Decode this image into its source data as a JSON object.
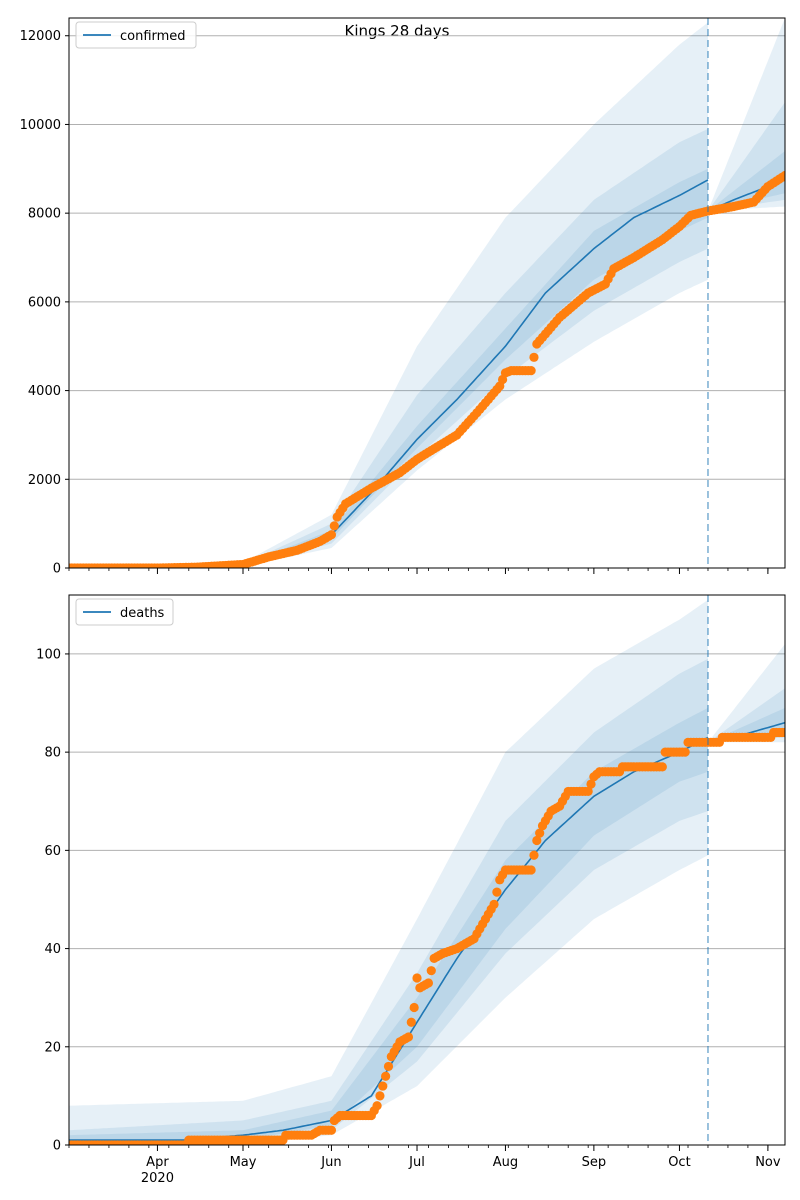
{
  "figure_title": "Kings 28 days",
  "colors": {
    "model": "#1f77b4",
    "observed": "#ff7f0e",
    "band": "#1f77b4",
    "grid": "#b0b0b0",
    "cutoff": "#1f77b4"
  },
  "x_axis": {
    "start": "2020-03-01",
    "end": "2020-11-07",
    "cutoff_date": "2020-10-11",
    "month_ticks": [
      {
        "date": "2020-04-01",
        "label": "Apr"
      },
      {
        "date": "2020-05-01",
        "label": "May"
      },
      {
        "date": "2020-06-01",
        "label": "Jun"
      },
      {
        "date": "2020-07-01",
        "label": "Jul"
      },
      {
        "date": "2020-08-01",
        "label": "Aug"
      },
      {
        "date": "2020-09-01",
        "label": "Sep"
      },
      {
        "date": "2020-10-01",
        "label": "Oct"
      },
      {
        "date": "2020-11-01",
        "label": "Nov"
      }
    ],
    "year_label": "2020"
  },
  "chart_data": [
    {
      "type": "line",
      "legend": "confirmed",
      "legend_position": "top-left",
      "grid": "horizontal",
      "ylim": [
        0,
        12400
      ],
      "yticks": [
        0,
        2000,
        4000,
        6000,
        8000,
        10000,
        12000
      ],
      "model_line": [
        [
          "2020-03-01",
          0
        ],
        [
          "2020-04-01",
          0
        ],
        [
          "2020-05-01",
          60
        ],
        [
          "2020-05-15",
          250
        ],
        [
          "2020-06-01",
          750
        ],
        [
          "2020-06-15",
          1700
        ],
        [
          "2020-07-01",
          2900
        ],
        [
          "2020-07-15",
          3800
        ],
        [
          "2020-08-01",
          5000
        ],
        [
          "2020-08-15",
          6200
        ],
        [
          "2020-09-01",
          7200
        ],
        [
          "2020-09-15",
          7900
        ],
        [
          "2020-10-01",
          8400
        ],
        [
          "2020-10-11",
          8750
        ]
      ],
      "projection_line": [
        [
          "2020-10-11",
          8050
        ],
        [
          "2020-10-20",
          8300
        ],
        [
          "2020-11-01",
          8600
        ],
        [
          "2020-11-07",
          8750
        ]
      ],
      "bands": [
        {
          "lower": [
            [
              "2020-03-01",
              0
            ],
            [
              "2020-05-01",
              30
            ],
            [
              "2020-06-01",
              450
            ],
            [
              "2020-07-01",
              2200
            ],
            [
              "2020-08-01",
              3800
            ],
            [
              "2020-09-01",
              5100
            ],
            [
              "2020-10-01",
              6200
            ],
            [
              "2020-10-11",
              6500
            ]
          ],
          "upper": [
            [
              "2020-03-01",
              0
            ],
            [
              "2020-05-01",
              120
            ],
            [
              "2020-06-01",
              1200
            ],
            [
              "2020-07-01",
              5000
            ],
            [
              "2020-08-01",
              7900
            ],
            [
              "2020-09-01",
              10000
            ],
            [
              "2020-10-01",
              11800
            ],
            [
              "2020-10-11",
              12300
            ]
          ]
        },
        {
          "lower": [
            [
              "2020-03-01",
              0
            ],
            [
              "2020-05-01",
              40
            ],
            [
              "2020-06-01",
              550
            ],
            [
              "2020-07-01",
              2500
            ],
            [
              "2020-08-01",
              4300
            ],
            [
              "2020-09-01",
              5800
            ],
            [
              "2020-10-01",
              6900
            ],
            [
              "2020-10-11",
              7200
            ]
          ],
          "upper": [
            [
              "2020-03-01",
              0
            ],
            [
              "2020-05-01",
              90
            ],
            [
              "2020-06-01",
              1000
            ],
            [
              "2020-07-01",
              3900
            ],
            [
              "2020-08-01",
              6200
            ],
            [
              "2020-09-01",
              8300
            ],
            [
              "2020-10-01",
              9600
            ],
            [
              "2020-10-11",
              9900
            ]
          ]
        },
        {
          "lower": [
            [
              "2020-03-01",
              0
            ],
            [
              "2020-05-01",
              50
            ],
            [
              "2020-06-01",
              650
            ],
            [
              "2020-07-01",
              2700
            ],
            [
              "2020-08-01",
              4700
            ],
            [
              "2020-09-01",
              6500
            ],
            [
              "2020-10-01",
              7600
            ],
            [
              "2020-10-11",
              7900
            ]
          ],
          "upper": [
            [
              "2020-03-01",
              0
            ],
            [
              "2020-05-01",
              75
            ],
            [
              "2020-06-01",
              850
            ],
            [
              "2020-07-01",
              3200
            ],
            [
              "2020-08-01",
              5400
            ],
            [
              "2020-09-01",
              7600
            ],
            [
              "2020-10-01",
              8700
            ],
            [
              "2020-10-11",
              9000
            ]
          ]
        },
        {
          "lower": [
            [
              "2020-10-11",
              8050
            ],
            [
              "2020-11-07",
              8150
            ]
          ],
          "upper": [
            [
              "2020-10-11",
              8050
            ],
            [
              "2020-11-07",
              12400
            ]
          ]
        },
        {
          "lower": [
            [
              "2020-10-11",
              8050
            ],
            [
              "2020-11-07",
              8300
            ]
          ],
          "upper": [
            [
              "2020-10-11",
              8050
            ],
            [
              "2020-11-07",
              10500
            ]
          ]
        },
        {
          "lower": [
            [
              "2020-10-11",
              8050
            ],
            [
              "2020-11-07",
              8450
            ]
          ],
          "upper": [
            [
              "2020-10-11",
              8050
            ],
            [
              "2020-11-07",
              9400
            ]
          ]
        }
      ],
      "observed": [
        [
          "2020-03-01",
          0
        ],
        [
          "2020-04-01",
          0
        ],
        [
          "2020-04-15",
          20
        ],
        [
          "2020-05-01",
          80
        ],
        [
          "2020-05-10",
          250
        ],
        [
          "2020-05-20",
          400
        ],
        [
          "2020-05-28",
          600
        ],
        [
          "2020-06-01",
          750
        ],
        [
          "2020-06-03",
          1150
        ],
        [
          "2020-06-06",
          1450
        ],
        [
          "2020-06-15",
          1800
        ],
        [
          "2020-06-25",
          2150
        ],
        [
          "2020-07-01",
          2450
        ],
        [
          "2020-07-06",
          2650
        ],
        [
          "2020-07-15",
          3000
        ],
        [
          "2020-07-22",
          3500
        ],
        [
          "2020-07-30",
          4100
        ],
        [
          "2020-08-01",
          4400
        ],
        [
          "2020-08-03",
          4450
        ],
        [
          "2020-08-10",
          4450
        ],
        [
          "2020-08-12",
          5050
        ],
        [
          "2020-08-20",
          5650
        ],
        [
          "2020-08-30",
          6200
        ],
        [
          "2020-09-05",
          6400
        ],
        [
          "2020-09-08",
          6750
        ],
        [
          "2020-09-15",
          7000
        ],
        [
          "2020-09-25",
          7400
        ],
        [
          "2020-10-01",
          7700
        ],
        [
          "2020-10-05",
          7950
        ],
        [
          "2020-10-11",
          8050
        ],
        [
          "2020-10-20",
          8150
        ],
        [
          "2020-10-27",
          8250
        ],
        [
          "2020-11-01",
          8600
        ],
        [
          "2020-11-07",
          8850
        ]
      ]
    },
    {
      "type": "line",
      "legend": "deaths",
      "legend_position": "top-left",
      "grid": "horizontal",
      "ylim": [
        0,
        112
      ],
      "yticks": [
        0,
        20,
        40,
        60,
        80,
        100
      ],
      "model_line": [
        [
          "2020-03-01",
          1
        ],
        [
          "2020-04-10",
          1
        ],
        [
          "2020-05-01",
          2
        ],
        [
          "2020-05-15",
          3
        ],
        [
          "2020-06-01",
          5
        ],
        [
          "2020-06-15",
          10
        ],
        [
          "2020-07-01",
          25
        ],
        [
          "2020-07-15",
          38
        ],
        [
          "2020-08-01",
          52
        ],
        [
          "2020-08-15",
          62
        ],
        [
          "2020-09-01",
          71
        ],
        [
          "2020-09-15",
          76
        ],
        [
          "2020-10-01",
          80
        ],
        [
          "2020-10-11",
          83
        ]
      ],
      "projection_line": [
        [
          "2020-10-11",
          82
        ],
        [
          "2020-10-20",
          83
        ],
        [
          "2020-11-01",
          85
        ],
        [
          "2020-11-07",
          86
        ]
      ],
      "bands": [
        {
          "lower": [
            [
              "2020-03-01",
              0
            ],
            [
              "2020-05-01",
              0
            ],
            [
              "2020-06-01",
              2
            ],
            [
              "2020-07-01",
              12
            ],
            [
              "2020-08-01",
              30
            ],
            [
              "2020-09-01",
              46
            ],
            [
              "2020-10-01",
              56
            ],
            [
              "2020-10-11",
              59
            ]
          ],
          "upper": [
            [
              "2020-03-01",
              8
            ],
            [
              "2020-05-01",
              9
            ],
            [
              "2020-06-01",
              14
            ],
            [
              "2020-07-01",
              46
            ],
            [
              "2020-08-01",
              80
            ],
            [
              "2020-09-01",
              97
            ],
            [
              "2020-10-01",
              107
            ],
            [
              "2020-10-11",
              111
            ]
          ]
        },
        {
          "lower": [
            [
              "2020-03-01",
              0
            ],
            [
              "2020-05-01",
              1
            ],
            [
              "2020-06-01",
              3
            ],
            [
              "2020-07-01",
              17
            ],
            [
              "2020-08-01",
              39
            ],
            [
              "2020-09-01",
              56
            ],
            [
              "2020-10-01",
              66
            ],
            [
              "2020-10-11",
              68
            ]
          ],
          "upper": [
            [
              "2020-03-01",
              3
            ],
            [
              "2020-05-01",
              5
            ],
            [
              "2020-06-01",
              9
            ],
            [
              "2020-07-01",
              35
            ],
            [
              "2020-08-01",
              66
            ],
            [
              "2020-09-01",
              84
            ],
            [
              "2020-10-01",
              96
            ],
            [
              "2020-10-11",
              99
            ]
          ]
        },
        {
          "lower": [
            [
              "2020-03-01",
              0
            ],
            [
              "2020-05-01",
              1
            ],
            [
              "2020-06-01",
              4
            ],
            [
              "2020-07-01",
              20
            ],
            [
              "2020-08-01",
              44
            ],
            [
              "2020-09-01",
              63
            ],
            [
              "2020-10-01",
              74
            ],
            [
              "2020-10-11",
              76
            ]
          ],
          "upper": [
            [
              "2020-03-01",
              2
            ],
            [
              "2020-05-01",
              3
            ],
            [
              "2020-06-01",
              7
            ],
            [
              "2020-07-01",
              30
            ],
            [
              "2020-08-01",
              58
            ],
            [
              "2020-09-01",
              76
            ],
            [
              "2020-10-01",
              86
            ],
            [
              "2020-10-11",
              89
            ]
          ]
        },
        {
          "lower": [
            [
              "2020-10-11",
              82
            ],
            [
              "2020-11-07",
              82
            ]
          ],
          "upper": [
            [
              "2020-10-11",
              82
            ],
            [
              "2020-11-07",
              102
            ]
          ]
        },
        {
          "lower": [
            [
              "2020-10-11",
              82
            ],
            [
              "2020-11-07",
              83
            ]
          ],
          "upper": [
            [
              "2020-10-11",
              82
            ],
            [
              "2020-11-07",
              93
            ]
          ]
        },
        {
          "lower": [
            [
              "2020-10-11",
              82
            ],
            [
              "2020-11-07",
              84
            ]
          ],
          "upper": [
            [
              "2020-10-11",
              82
            ],
            [
              "2020-11-07",
              89
            ]
          ]
        }
      ],
      "observed": [
        [
          "2020-03-01",
          0
        ],
        [
          "2020-04-11",
          0
        ],
        [
          "2020-04-12",
          1
        ],
        [
          "2020-05-15",
          1
        ],
        [
          "2020-05-16",
          2
        ],
        [
          "2020-05-25",
          2
        ],
        [
          "2020-05-28",
          3
        ],
        [
          "2020-06-01",
          3
        ],
        [
          "2020-06-02",
          5
        ],
        [
          "2020-06-04",
          6
        ],
        [
          "2020-06-15",
          6
        ],
        [
          "2020-06-17",
          8
        ],
        [
          "2020-06-19",
          12
        ],
        [
          "2020-06-22",
          18
        ],
        [
          "2020-06-25",
          21
        ],
        [
          "2020-06-28",
          22
        ],
        [
          "2020-06-30",
          28
        ],
        [
          "2020-07-01",
          34
        ],
        [
          "2020-07-02",
          32
        ],
        [
          "2020-07-05",
          33
        ],
        [
          "2020-07-07",
          38
        ],
        [
          "2020-07-10",
          39
        ],
        [
          "2020-07-15",
          40
        ],
        [
          "2020-07-18",
          41
        ],
        [
          "2020-07-21",
          42
        ],
        [
          "2020-07-25",
          46
        ],
        [
          "2020-07-28",
          49
        ],
        [
          "2020-07-30",
          54
        ],
        [
          "2020-08-01",
          56
        ],
        [
          "2020-08-10",
          56
        ],
        [
          "2020-08-12",
          62
        ],
        [
          "2020-08-14",
          65
        ],
        [
          "2020-08-17",
          68
        ],
        [
          "2020-08-20",
          69
        ],
        [
          "2020-08-23",
          72
        ],
        [
          "2020-08-30",
          72
        ],
        [
          "2020-09-01",
          75
        ],
        [
          "2020-09-03",
          76
        ],
        [
          "2020-09-10",
          76
        ],
        [
          "2020-09-11",
          77
        ],
        [
          "2020-09-25",
          77
        ],
        [
          "2020-09-26",
          80
        ],
        [
          "2020-10-03",
          80
        ],
        [
          "2020-10-04",
          82
        ],
        [
          "2020-10-15",
          82
        ],
        [
          "2020-10-16",
          83
        ],
        [
          "2020-11-02",
          83
        ],
        [
          "2020-11-03",
          84
        ],
        [
          "2020-11-07",
          84
        ]
      ]
    }
  ]
}
